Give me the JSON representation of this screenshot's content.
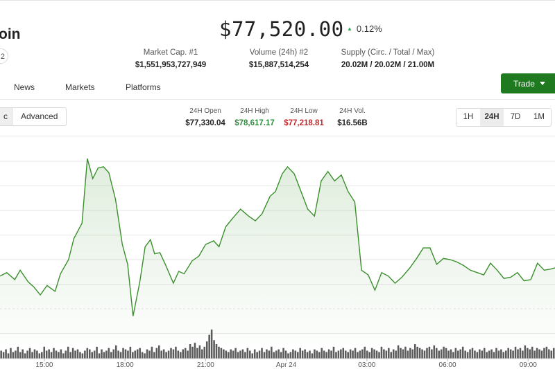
{
  "header": {
    "coin_name": "oin",
    "badge_text": "2",
    "price": "$77,520.00",
    "price_change": "0.12%",
    "change_direction_icon": "triangle-up-icon",
    "stats": [
      {
        "label": "Market Cap. #1",
        "value": "$1,551,953,727,949"
      },
      {
        "label": "Volume (24h) #2",
        "value": "$15,887,514,254"
      },
      {
        "label": "Supply (Circ. / Total / Max)",
        "value": "20.02M / 20.02M / 21.00M"
      }
    ]
  },
  "nav": {
    "links": [
      "News",
      "Markets",
      "Platforms"
    ],
    "trade_label": "Trade"
  },
  "toolbar": {
    "mode_options": [
      "c",
      "Advanced"
    ],
    "mode_selected": "c",
    "ohlc": [
      {
        "label": "24H Open",
        "value": "$77,330.04",
        "tone": "neutral"
      },
      {
        "label": "24H High",
        "value": "$78,617.17",
        "tone": "positive"
      },
      {
        "label": "24H Low",
        "value": "$77,218.81",
        "tone": "negative"
      },
      {
        "label": "24H Vol.",
        "value": "$16.56B",
        "tone": "neutral"
      }
    ],
    "ranges": [
      "1H",
      "24H",
      "7D",
      "1M"
    ],
    "range_selected": "24H"
  },
  "colors": {
    "line": "#3a8f2c",
    "volume_bar": "#5a5a5a",
    "grid": "#e6e6e6",
    "trade_button": "#1f7a1f",
    "positive": "#2e8b3c",
    "negative": "#c0282d"
  },
  "chart_data": {
    "type": "line",
    "title": "",
    "xlabel": "",
    "ylabel": "",
    "x_tick_labels": [
      "15:00",
      "18:00",
      "21:00",
      "Apr 24",
      "03:00",
      "06:00",
      "09:00"
    ],
    "x_tick_hours": [
      15,
      18,
      21,
      24,
      27,
      30,
      33
    ],
    "x_range_hours": [
      13.35,
      34.0
    ],
    "ylim": [
      77160,
      78680
    ],
    "grid": true,
    "legend": "none",
    "series": [
      {
        "hours": [
          13.35,
          13.6,
          13.9,
          14.1,
          14.4,
          14.6,
          14.85,
          15.1,
          15.4,
          15.6,
          15.9,
          16.1,
          16.4,
          16.6,
          16.8,
          17.0,
          17.2,
          17.4,
          17.65,
          17.9,
          18.1,
          18.3,
          18.55,
          18.75,
          18.95,
          19.1,
          19.3,
          19.5,
          19.8,
          20.0,
          20.2,
          20.5,
          20.75,
          21.0,
          21.3,
          21.5,
          21.75,
          22.0,
          22.3,
          22.6,
          22.85,
          23.1,
          23.4,
          23.6,
          23.85,
          24.05,
          24.3,
          24.55,
          24.8,
          25.05,
          25.3,
          25.55,
          25.8,
          26.05,
          26.3,
          26.55,
          26.8,
          27.05,
          27.3,
          27.55,
          27.8,
          28.05,
          28.3,
          28.6,
          28.85,
          29.1,
          29.35,
          29.6,
          29.85,
          30.1,
          30.35,
          30.6,
          30.85,
          31.1,
          31.35,
          31.6,
          31.85,
          32.1,
          32.35,
          32.6,
          32.85,
          33.1,
          33.35,
          33.6,
          33.85,
          34.0
        ],
        "prices": [
          77550,
          77580,
          77520,
          77600,
          77500,
          77460,
          77390,
          77470,
          77420,
          77570,
          77690,
          77870,
          78000,
          78550,
          78380,
          78470,
          78480,
          78430,
          78200,
          77820,
          77650,
          77210,
          77500,
          77800,
          77860,
          77740,
          77750,
          77650,
          77490,
          77590,
          77570,
          77680,
          77720,
          77820,
          77850,
          77800,
          77970,
          78040,
          78120,
          78060,
          78020,
          78080,
          78230,
          78270,
          78420,
          78480,
          78420,
          78270,
          78120,
          78060,
          78360,
          78440,
          78360,
          78410,
          78270,
          78180,
          77600,
          77560,
          77430,
          77580,
          77550,
          77490,
          77540,
          77620,
          77700,
          77790,
          77790,
          77650,
          77700,
          77690,
          77670,
          77640,
          77600,
          77580,
          77560,
          77660,
          77600,
          77530,
          77540,
          77580,
          77510,
          77520,
          77660,
          77600,
          77610,
          77620
        ]
      }
    ],
    "volume": {
      "name": "",
      "values": [
        6,
        5,
        7,
        4,
        8,
        5,
        6,
        9,
        5,
        7,
        4,
        6,
        8,
        5,
        7,
        6,
        4,
        5,
        9,
        6,
        7,
        5,
        8,
        6,
        5,
        7,
        4,
        6,
        9,
        5,
        8,
        6,
        7,
        5,
        4,
        6,
        8,
        7,
        5,
        6,
        9,
        4,
        7,
        5,
        6,
        8,
        5,
        7,
        10,
        6,
        5,
        8,
        7,
        6,
        9,
        5,
        6,
        7,
        8,
        5,
        4,
        7,
        6,
        9,
        5,
        8,
        10,
        6,
        7,
        5,
        6,
        8,
        7,
        9,
        6,
        5,
        7,
        8,
        6,
        11,
        9,
        12,
        8,
        10,
        7,
        9,
        13,
        18,
        22,
        14,
        11,
        9,
        8,
        7,
        6,
        5,
        7,
        6,
        8,
        5,
        6,
        7,
        5,
        8,
        6,
        4,
        7,
        5,
        6,
        8,
        5,
        7,
        6,
        9,
        5,
        6,
        7,
        5,
        8,
        6,
        4,
        5,
        7,
        6,
        5,
        8,
        6,
        7,
        5,
        6,
        4,
        7,
        6,
        5,
        8,
        6,
        5,
        7,
        6,
        9,
        5,
        6,
        7,
        8,
        6,
        5,
        7,
        6,
        8,
        5,
        6,
        7,
        9,
        6,
        5,
        8,
        7,
        6,
        5,
        9,
        7,
        6,
        8,
        5,
        7,
        6,
        10,
        8,
        7,
        9,
        6,
        8,
        7,
        11,
        9,
        8,
        7,
        6,
        8,
        9,
        7,
        10,
        8,
        6,
        7,
        9,
        8,
        6,
        7,
        5,
        8,
        6,
        7,
        9,
        6,
        5,
        7,
        8,
        6,
        5,
        7,
        6,
        8,
        5,
        6,
        7,
        5,
        8,
        6,
        7,
        5,
        6,
        8,
        7,
        6,
        9,
        7,
        8,
        6,
        10,
        8,
        7,
        9,
        6,
        8,
        7,
        6,
        8,
        9,
        7,
        6,
        8
      ]
    }
  }
}
